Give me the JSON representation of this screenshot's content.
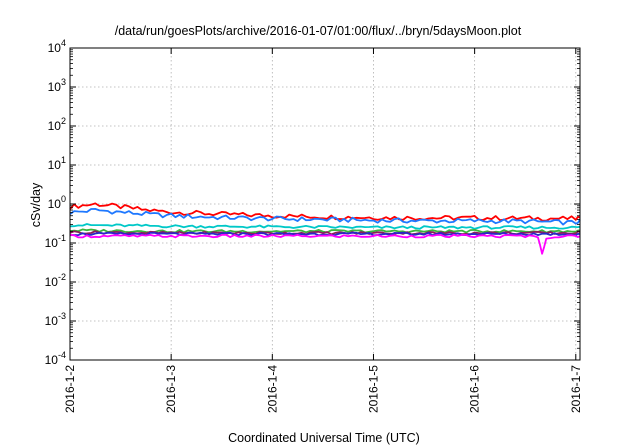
{
  "chart_data": {
    "type": "line",
    "title": "/data/run/goesPlots/archive/2016-01-07/01:00/flux/../bryn/5daysMoon.plot",
    "xlabel": "Coordinated Universal Time (UTC)",
    "ylabel": "cSv/day",
    "yscale": "log",
    "ylim": [
      0.0001,
      10000
    ],
    "xlim": [
      "2016-01-02",
      "2016-01-07 01:00"
    ],
    "grid": true,
    "x_ticks": [
      "2016-1-2",
      "2016-1-3",
      "2016-1-4",
      "2016-1-5",
      "2016-1-6",
      "2016-1-7"
    ],
    "y_ticks": [
      {
        "base": "10",
        "exp": "-4",
        "value": 0.0001
      },
      {
        "base": "10",
        "exp": "-3",
        "value": 0.001
      },
      {
        "base": "10",
        "exp": "-2",
        "value": 0.01
      },
      {
        "base": "10",
        "exp": "-1",
        "value": 0.1
      },
      {
        "base": "10",
        "exp": "0",
        "value": 1
      },
      {
        "base": "10",
        "exp": "1",
        "value": 10
      },
      {
        "base": "10",
        "exp": "2",
        "value": 100
      },
      {
        "base": "10",
        "exp": "3",
        "value": 1000
      },
      {
        "base": "10",
        "exp": "4",
        "value": 10000
      }
    ],
    "series": [
      {
        "color": "#ff0000",
        "x": [
          "2016-01-02 00:00",
          "2016-01-02 06:00",
          "2016-01-02 12:00",
          "2016-01-02 18:00",
          "2016-01-03 00:00",
          "2016-01-03 12:00",
          "2016-01-04 00:00",
          "2016-01-04 12:00",
          "2016-01-05 00:00",
          "2016-01-05 12:00",
          "2016-01-06 00:00",
          "2016-01-06 12:00",
          "2016-01-07 00:00",
          "2016-01-07 01:00"
        ],
        "y": [
          0.85,
          1.0,
          0.85,
          0.7,
          0.62,
          0.55,
          0.5,
          0.47,
          0.45,
          0.44,
          0.44,
          0.43,
          0.42,
          0.45
        ]
      },
      {
        "color": "#1e78ff",
        "x": [
          "2016-01-02 00:00",
          "2016-01-02 06:00",
          "2016-01-02 12:00",
          "2016-01-02 18:00",
          "2016-01-03 00:00",
          "2016-01-03 12:00",
          "2016-01-04 00:00",
          "2016-01-04 12:00",
          "2016-01-05 00:00",
          "2016-01-05 12:00",
          "2016-01-06 00:00",
          "2016-01-06 12:00",
          "2016-01-07 00:00",
          "2016-01-07 01:00"
        ],
        "y": [
          0.6,
          0.7,
          0.62,
          0.55,
          0.5,
          0.45,
          0.42,
          0.4,
          0.38,
          0.37,
          0.37,
          0.36,
          0.33,
          0.4
        ]
      },
      {
        "color": "#00c8c8",
        "x": [
          "2016-01-02 00:00",
          "2016-01-03 00:00",
          "2016-01-04 00:00",
          "2016-01-05 00:00",
          "2016-01-06 00:00",
          "2016-01-07 00:00",
          "2016-01-07 01:00"
        ],
        "y": [
          0.29,
          0.27,
          0.26,
          0.25,
          0.25,
          0.25,
          0.26
        ]
      },
      {
        "color": "#3cb43c",
        "x": [
          "2016-01-02 00:00",
          "2016-01-03 00:00",
          "2016-01-04 00:00",
          "2016-01-05 00:00",
          "2016-01-06 00:00",
          "2016-01-07 00:00",
          "2016-01-07 01:00"
        ],
        "y": [
          0.21,
          0.2,
          0.2,
          0.2,
          0.2,
          0.2,
          0.21
        ]
      },
      {
        "color": "#8c1e5a",
        "x": [
          "2016-01-02 00:00",
          "2016-01-03 00:00",
          "2016-01-04 00:00",
          "2016-01-05 00:00",
          "2016-01-06 00:00",
          "2016-01-07 00:00",
          "2016-01-07 01:00"
        ],
        "y": [
          0.19,
          0.18,
          0.18,
          0.18,
          0.18,
          0.18,
          0.19
        ]
      },
      {
        "color": "#2828c8",
        "x": [
          "2016-01-02 00:00",
          "2016-01-03 00:00",
          "2016-01-04 00:00",
          "2016-01-05 00:00",
          "2016-01-06 00:00",
          "2016-01-07 00:00",
          "2016-01-07 01:00"
        ],
        "y": [
          0.17,
          0.17,
          0.17,
          0.17,
          0.17,
          0.17,
          0.17
        ]
      },
      {
        "color": "#ff00ff",
        "x": [
          "2016-01-02 00:00",
          "2016-01-03 00:00",
          "2016-01-04 00:00",
          "2016-01-05 00:00",
          "2016-01-06 00:00",
          "2016-01-06 15:00",
          "2016-01-06 16:00",
          "2016-01-06 17:00",
          "2016-01-07 00:00",
          "2016-01-07 01:00"
        ],
        "y": [
          0.15,
          0.15,
          0.15,
          0.15,
          0.15,
          0.15,
          0.05,
          0.14,
          0.15,
          0.15
        ]
      }
    ]
  }
}
